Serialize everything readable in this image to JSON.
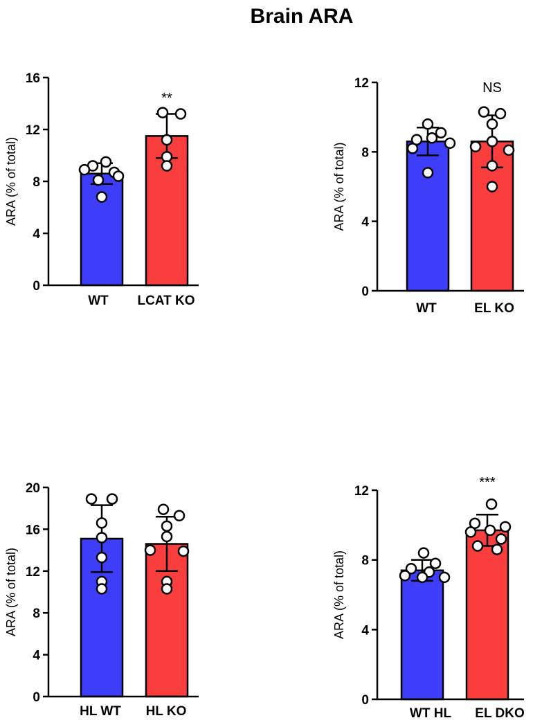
{
  "figure_title": "Brain ARA",
  "colors": {
    "wt": "#3e3efa",
    "ko": "#fa3e3e",
    "axis": "#000000",
    "dot_fill": "#ffffff"
  },
  "chart_data": [
    {
      "type": "bar",
      "ylabel": "ARA (% of total)",
      "ylim": [
        0,
        16
      ],
      "yticks": [
        0,
        4,
        8,
        12,
        16
      ],
      "categories": [
        "WT",
        "LCAT KO"
      ],
      "means": [
        8.6,
        11.5
      ],
      "sd": [
        0.8,
        1.7
      ],
      "points": [
        [
          9.5,
          9.2,
          8.9,
          8.7,
          8.4,
          8.1,
          6.8
        ],
        [
          13.3,
          13.2,
          11.2,
          9.9,
          9.2
        ]
      ],
      "annotation": "**"
    },
    {
      "type": "bar",
      "ylabel": "ARA (% of total)",
      "ylim": [
        0,
        12
      ],
      "yticks": [
        0,
        4,
        8,
        12
      ],
      "categories": [
        "WT",
        "EL KO"
      ],
      "means": [
        8.6,
        8.6
      ],
      "sd": [
        0.8,
        1.5
      ],
      "points": [
        [
          9.6,
          9.1,
          8.8,
          8.7,
          8.5,
          8.2,
          6.8
        ],
        [
          10.3,
          10.2,
          9.6,
          8.6,
          8.3,
          8.1,
          7.2,
          6.0
        ]
      ],
      "annotation": "NS"
    },
    {
      "type": "bar",
      "ylabel": "ARA (% of total)",
      "ylim": [
        0,
        20
      ],
      "yticks": [
        0,
        4,
        8,
        12,
        16,
        20
      ],
      "categories": [
        "HL WT",
        "HL KO"
      ],
      "means": [
        15.1,
        14.6
      ],
      "sd": [
        3.2,
        2.6
      ],
      "points": [
        [
          18.9,
          18.9,
          16.6,
          15.2,
          13.3,
          11.0,
          10.3
        ],
        [
          17.9,
          17.3,
          16.3,
          15.3,
          14.0,
          13.9,
          11.0,
          10.3
        ]
      ],
      "annotation": ""
    },
    {
      "type": "bar",
      "ylabel": "ARA (% of total)",
      "ylim": [
        0,
        12
      ],
      "yticks": [
        0,
        4,
        8,
        12
      ],
      "categories": [
        "WT HL",
        "EL DKO"
      ],
      "means": [
        7.4,
        9.7
      ],
      "sd": [
        0.6,
        0.9
      ],
      "points": [
        [
          8.4,
          7.8,
          7.5,
          7.3,
          7.1,
          7.0,
          7.0
        ],
        [
          11.2,
          10.1,
          9.9,
          9.7,
          9.6,
          9.2,
          8.8,
          8.6
        ]
      ],
      "annotation": "***"
    }
  ]
}
